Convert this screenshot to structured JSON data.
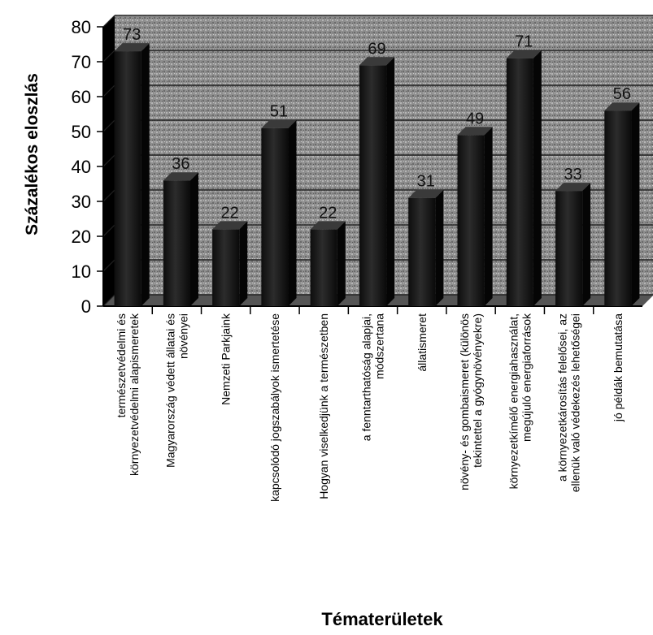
{
  "chart_data": {
    "type": "bar",
    "xlabel": "Tématerületek",
    "ylabel": "Százalékos eloszlás",
    "ylim": [
      0,
      80
    ],
    "yticks": [
      "0",
      "10",
      "20",
      "30",
      "40",
      "50",
      "60",
      "70",
      "80"
    ],
    "grid": true,
    "categories": [
      [
        "természetvédelmi és",
        "környezetvédelmi alapismeretek"
      ],
      [
        "Magyarország védett állatai és",
        "növényei"
      ],
      [
        "Nemzeti Parkjaink"
      ],
      [
        "kapcsolódó jogszabályok ismertetése"
      ],
      [
        "Hogyan viselkedjünk a természetben"
      ],
      [
        "a fenntarthatóság alapjai,",
        "módszertana"
      ],
      [
        "állatismeret"
      ],
      [
        "növény- és gombaismeret (különös",
        "tekintettel a gyógynövényekre)"
      ],
      [
        "környezetkímélő energiahasználat,",
        "megújuló energiaforrások"
      ],
      [
        "a környezetkárosítás felelősei, az",
        "ellenük való védekezés lehetőségei"
      ],
      [
        "jó példák bemutatása"
      ]
    ],
    "values": [
      73,
      36,
      22,
      51,
      22,
      69,
      31,
      49,
      71,
      33,
      56
    ],
    "data_labels": [
      "73",
      "36",
      "22",
      "51",
      "22",
      "69",
      "31",
      "49",
      "71",
      "33",
      "56"
    ],
    "bar_color": "#1e1e1e",
    "wall_color": "#8c8c8c"
  }
}
